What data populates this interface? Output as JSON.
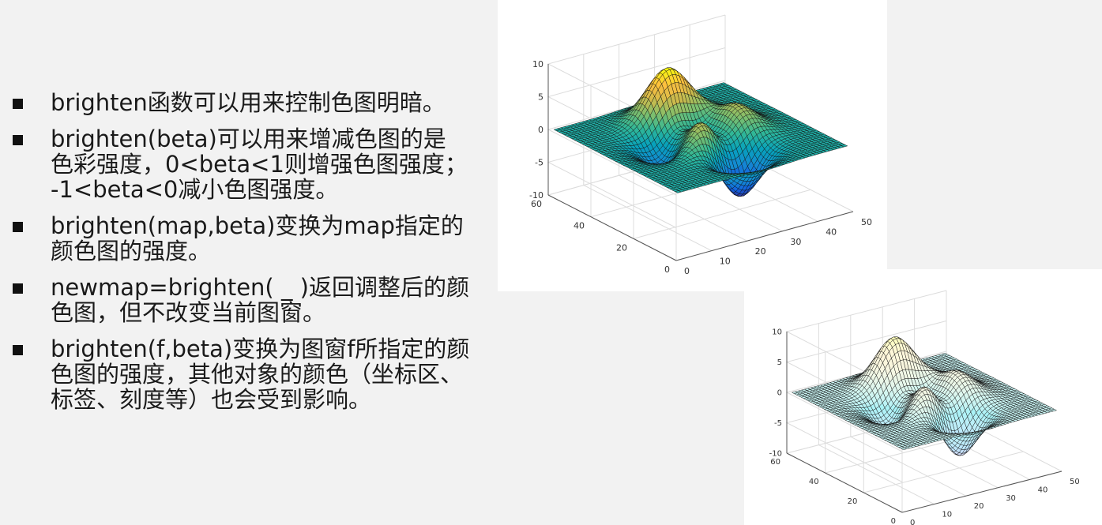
{
  "bullets": [
    {
      "lines": [
        "brighten函数可以用来控制色图明暗。"
      ]
    },
    {
      "lines": [
        "brighten(beta)可以用来增减色图的是",
        "色彩强度，0<beta<1则增强色图强度；",
        "-1<beta<0减小色图强度。"
      ]
    },
    {
      "lines": [
        "brighten(map,beta)变换为map指定的",
        "颜色图的强度。"
      ]
    },
    {
      "lines": [
        "newmap=brighten( _ )返回调整后的颜",
        "色图，但不改变当前图窗。"
      ]
    },
    {
      "lines": [
        "brighten(f,beta)变换为图窗f所指定的颜",
        "色图的强度，其他对象的颜色（坐标区、",
        "标签、刻度等）也会受到影响。"
      ]
    }
  ],
  "chart_data": [
    {
      "type": "surface",
      "function": "peaks",
      "grid_size": 49,
      "colormap": "parula",
      "brighten_beta": 0,
      "z_ticks": [
        "10",
        "5",
        "0",
        "-5",
        "-10"
      ],
      "y_ticks": [
        "60",
        "40",
        "20",
        "0"
      ],
      "x_ticks": [
        "0",
        "10",
        "20",
        "30",
        "40",
        "50"
      ],
      "xlim": [
        0,
        50
      ],
      "ylim": [
        0,
        60
      ],
      "zlim": [
        -10,
        10
      ],
      "grid": true
    },
    {
      "type": "surface",
      "function": "peaks",
      "grid_size": 49,
      "colormap": "parula",
      "brighten_beta": 0.7,
      "z_ticks": [
        "10",
        "5",
        "0",
        "-5",
        "-10"
      ],
      "y_ticks": [
        "60",
        "40",
        "20",
        "0"
      ],
      "x_ticks": [
        "0",
        "10",
        "20",
        "30",
        "40",
        "50"
      ],
      "xlim": [
        0,
        50
      ],
      "ylim": [
        0,
        60
      ],
      "zlim": [
        -10,
        10
      ],
      "grid": true
    }
  ]
}
